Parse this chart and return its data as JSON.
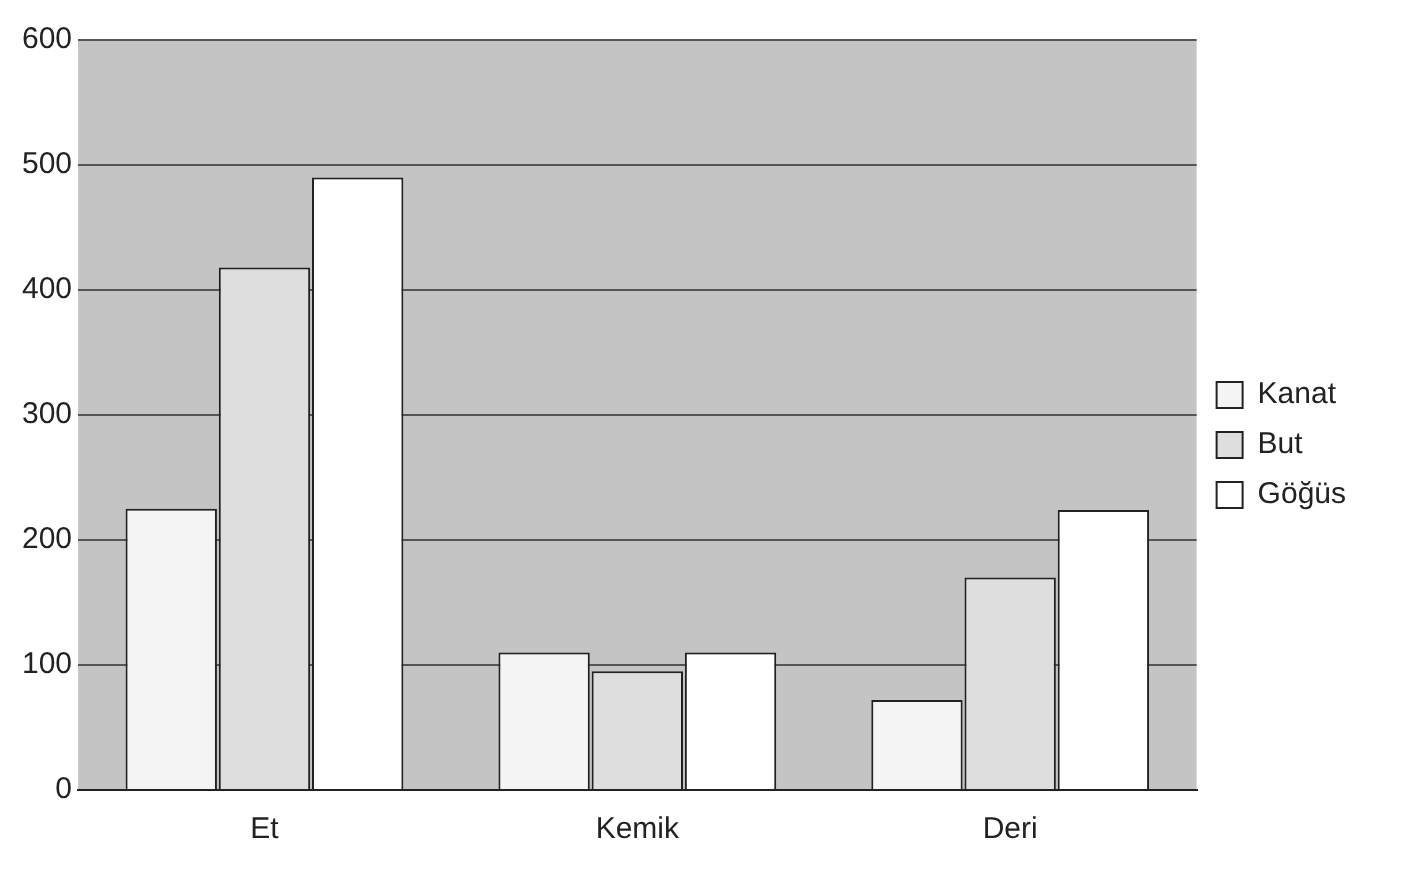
{
  "chart_data": {
    "type": "bar",
    "categories": [
      "Et",
      "Kemik",
      "Deri"
    ],
    "series": [
      {
        "name": "Kanat",
        "color": "#f4f4f4",
        "values": [
          225,
          110,
          72
        ]
      },
      {
        "name": "But",
        "color": "#dedede",
        "values": [
          418,
          95,
          170
        ]
      },
      {
        "name": "Göğüs",
        "color": "#ffffff",
        "values": [
          490,
          110,
          224
        ]
      }
    ],
    "ylim": [
      0,
      600
    ],
    "yticks": [
      0,
      100,
      200,
      300,
      400,
      500,
      600
    ],
    "grid": "y",
    "legend": "right"
  }
}
